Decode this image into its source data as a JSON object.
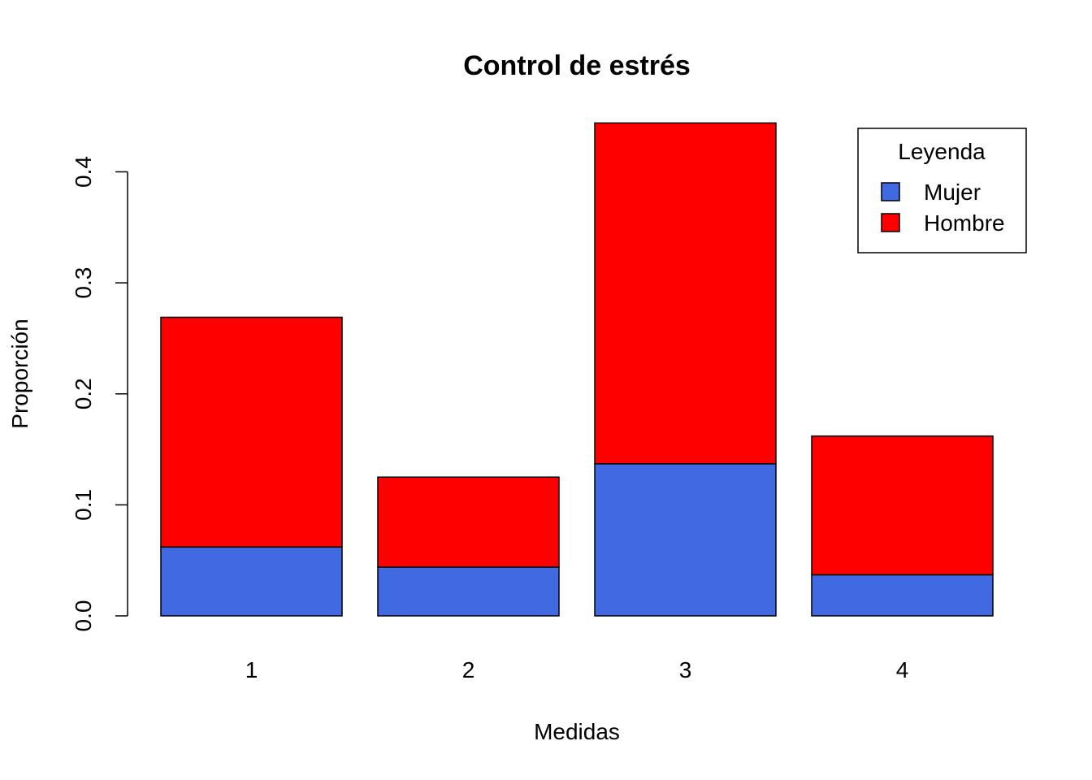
{
  "chart_data": {
    "type": "bar",
    "stacked": true,
    "title": "Control de estrés",
    "xlabel": "Medidas",
    "ylabel": "Proporción",
    "categories": [
      "1",
      "2",
      "3",
      "4"
    ],
    "series": [
      {
        "name": "Mujer",
        "color": "#4169E1",
        "values": [
          0.062,
          0.044,
          0.137,
          0.037
        ]
      },
      {
        "name": "Hombre",
        "color": "#FF0000",
        "values": [
          0.207,
          0.081,
          0.307,
          0.125
        ]
      }
    ],
    "ylim": [
      0,
      0.45
    ],
    "yticks": [
      0.0,
      0.1,
      0.2,
      0.3,
      0.4
    ],
    "ytick_labels": [
      "0.0",
      "0.1",
      "0.2",
      "0.3",
      "0.4"
    ],
    "legend": {
      "title": "Leyenda",
      "position": "top-right"
    },
    "grid": false
  }
}
